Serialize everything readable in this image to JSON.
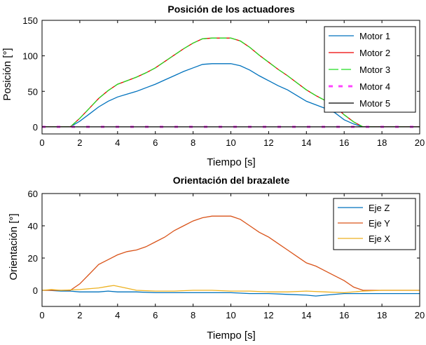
{
  "chart_data": [
    {
      "type": "line",
      "title": "Posición de los actuadores",
      "xlabel": "Tiempo [s]",
      "ylabel": "Posición [°]",
      "xlim": [
        0,
        20
      ],
      "ylim": [
        -10,
        150
      ],
      "xticks": [
        0,
        2,
        4,
        6,
        8,
        10,
        12,
        14,
        16,
        18,
        20
      ],
      "yticks": [
        0,
        50,
        100,
        150
      ],
      "legend": "top-right",
      "grid": false,
      "series": [
        {
          "name": "Motor 1",
          "color": "#0072bd",
          "dash": "solid",
          "x": [
            0,
            1.5,
            2,
            2.5,
            3,
            3.5,
            4,
            4.5,
            5,
            5.5,
            6,
            6.5,
            7,
            7.5,
            8,
            8.5,
            9,
            9.5,
            10,
            10.5,
            11,
            11.5,
            12,
            12.5,
            13,
            13.5,
            14,
            14.5,
            15,
            15.5,
            16,
            16.5,
            17,
            20
          ],
          "y": [
            0,
            0,
            8,
            18,
            28,
            36,
            42,
            46,
            50,
            55,
            60,
            66,
            72,
            78,
            83,
            88,
            89,
            89,
            89,
            86,
            80,
            72,
            65,
            58,
            52,
            44,
            36,
            31,
            26,
            20,
            10,
            4,
            0,
            0
          ]
        },
        {
          "name": "Motor 2",
          "color": "#ee0000",
          "dash": "solid",
          "x": [
            0,
            1.5,
            2,
            2.5,
            3,
            3.5,
            4,
            4.5,
            5,
            5.5,
            6,
            6.5,
            7,
            7.5,
            8,
            8.5,
            9,
            9.5,
            10,
            10.5,
            11,
            11.5,
            12,
            12.5,
            13,
            13.5,
            14,
            14.5,
            15,
            15.5,
            16,
            16.5,
            17,
            20
          ],
          "y": [
            0,
            0,
            12,
            26,
            40,
            51,
            60,
            65,
            70,
            76,
            83,
            92,
            101,
            110,
            118,
            124,
            125,
            125,
            125,
            121,
            112,
            101,
            91,
            81,
            72,
            62,
            52,
            44,
            37,
            29,
            17,
            7,
            0,
            0
          ]
        },
        {
          "name": "Motor 3",
          "color": "#22dd22",
          "dash": "10,4",
          "x": [
            0,
            1.5,
            2,
            2.5,
            3,
            3.5,
            4,
            4.5,
            5,
            5.5,
            6,
            6.5,
            7,
            7.5,
            8,
            8.5,
            9,
            9.5,
            10,
            10.5,
            11,
            11.5,
            12,
            12.5,
            13,
            13.5,
            14,
            14.5,
            15,
            15.5,
            16,
            16.5,
            17,
            20
          ],
          "y": [
            0,
            0,
            12,
            26,
            40,
            51,
            60,
            65,
            70,
            76,
            83,
            92,
            101,
            110,
            118,
            124,
            125,
            125,
            125,
            121,
            112,
            101,
            91,
            81,
            72,
            62,
            52,
            44,
            37,
            29,
            17,
            7,
            0,
            0
          ]
        },
        {
          "name": "Motor 4",
          "color": "#ff44ff",
          "dash": "5,16",
          "x": [
            0,
            20
          ],
          "y": [
            0,
            0
          ]
        },
        {
          "name": "Motor 5",
          "color": "#000000",
          "dash": "solid",
          "x": [
            0,
            20
          ],
          "y": [
            0,
            0
          ]
        }
      ]
    },
    {
      "type": "line",
      "title": "Orientación del brazalete",
      "xlabel": "Tiempo [s]",
      "ylabel": "Orientación [°]",
      "xlim": [
        0,
        20
      ],
      "ylim": [
        -10,
        60
      ],
      "xticks": [
        0,
        2,
        4,
        6,
        8,
        10,
        12,
        14,
        16,
        18,
        20
      ],
      "yticks": [
        0,
        20,
        40,
        60
      ],
      "legend": "top-right",
      "grid": false,
      "series": [
        {
          "name": "Eje Z",
          "color": "#0072bd",
          "dash": "solid",
          "x": [
            0,
            0.3,
            1,
            1.5,
            2,
            3,
            3.5,
            4,
            5,
            6,
            7,
            8,
            9,
            10,
            11,
            12,
            13,
            14,
            14.5,
            15,
            16,
            17,
            18,
            19,
            20
          ],
          "y": [
            0,
            0,
            -0.5,
            -0.5,
            -1,
            -1,
            -0.5,
            -1,
            -1,
            -1.5,
            -1.5,
            -1.5,
            -1.5,
            -1.5,
            -2,
            -2,
            -2.5,
            -3,
            -3.5,
            -3,
            -2,
            -2,
            -2,
            -2,
            -2
          ]
        },
        {
          "name": "Eje Y",
          "color": "#d95319",
          "dash": "solid",
          "x": [
            0,
            1.5,
            2,
            2.5,
            3,
            3.5,
            4,
            4.5,
            5,
            5.5,
            6,
            6.5,
            7,
            7.5,
            8,
            8.5,
            9,
            9.5,
            10,
            10.5,
            11,
            11.5,
            12,
            12.5,
            13,
            13.5,
            14,
            14.5,
            15,
            15.5,
            16,
            16.5,
            17,
            17.5,
            18,
            20
          ],
          "y": [
            0,
            0,
            4,
            10,
            16,
            19,
            22,
            24,
            25,
            27,
            30,
            33,
            37,
            40,
            43,
            45,
            46,
            46,
            46,
            44,
            40,
            36,
            33,
            29,
            25,
            21,
            17,
            15,
            12,
            9,
            6,
            2,
            0,
            0,
            0,
            0
          ]
        },
        {
          "name": "Eje X",
          "color": "#edb120",
          "dash": "solid",
          "x": [
            0,
            0.5,
            1,
            2,
            3,
            3.5,
            3.8,
            4.2,
            5,
            6,
            7,
            8,
            9,
            10,
            11,
            12,
            13,
            14,
            15,
            16,
            17,
            18,
            20
          ],
          "y": [
            0,
            0.5,
            0,
            0.5,
            1.5,
            2.5,
            3,
            2,
            0,
            -0.5,
            -0.5,
            0,
            0,
            -0.5,
            -0.5,
            -1,
            -1,
            -0.5,
            -1,
            -1.5,
            -0.5,
            0,
            0
          ]
        }
      ]
    }
  ]
}
